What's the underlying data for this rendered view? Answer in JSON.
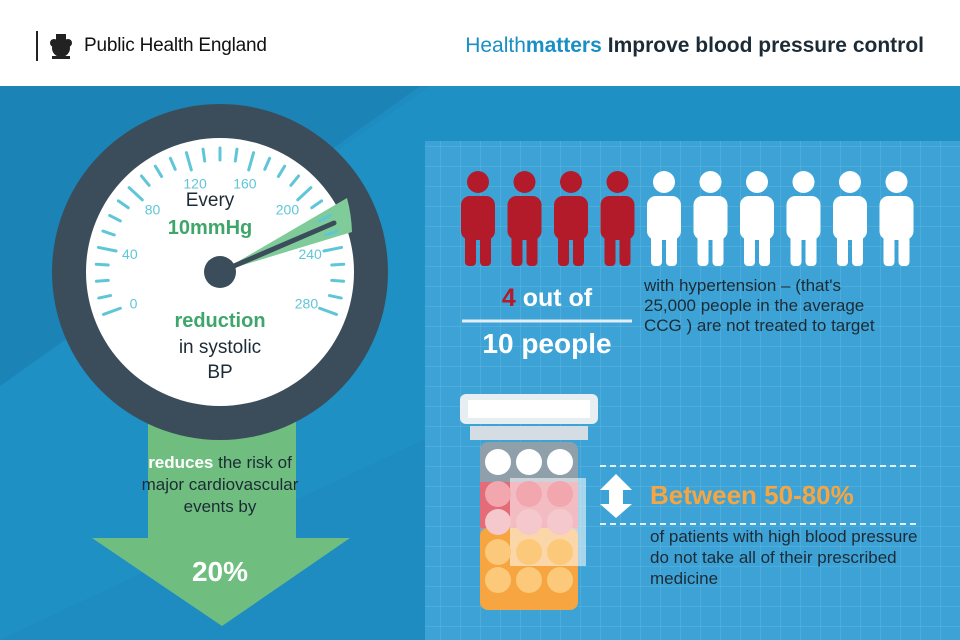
{
  "header": {
    "org_name": "Public Health England",
    "brand_light": "Health",
    "brand_bold": "matters",
    "title": "Improve blood pressure control"
  },
  "gauge": {
    "ticks": [
      "0",
      "40",
      "80",
      "120",
      "160",
      "200",
      "240",
      "280"
    ],
    "line1": "Every",
    "line2": "10mmHg",
    "line3": "reduction",
    "line4": "in systolic",
    "line5": "BP"
  },
  "arrow": {
    "bold": "reduces",
    "rest": " the risk of major cardiovascular events by",
    "percent": "20%"
  },
  "people": {
    "count_highlight": "4",
    "count_rest": " out of",
    "total": "10 people",
    "description": "with hypertension – (that's 25,000 people in the average CCG ) are not treated to target",
    "red_count": 4,
    "total_count": 10
  },
  "medicine": {
    "headline": "Between 50-80%",
    "description": "of patients with high blood pressure do not take all of their prescribed medicine"
  },
  "colors": {
    "background": "#1e8cc0",
    "accent_green": "#3fa66b",
    "red": "#b31b2b",
    "orange": "#f6a541",
    "dark": "#1d2b36"
  }
}
